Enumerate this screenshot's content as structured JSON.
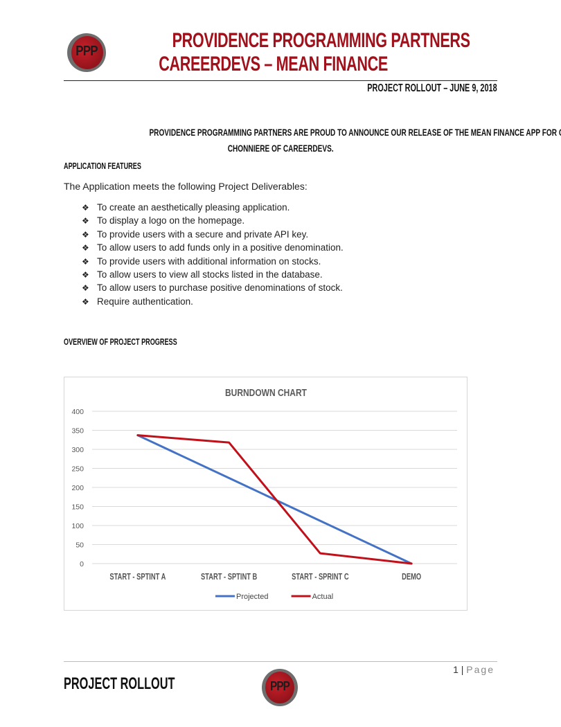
{
  "header": {
    "logo_text": "PPP",
    "title_line1": "PROVIDENCE PROGRAMMING PARTNERS",
    "title_line2": "CAREERDEVS – MEAN FINANCE",
    "meta": "PROJECT ROLLOUT – JUNE 9, 2018"
  },
  "announcement": {
    "line1": "PROVIDENCE PROGRAMMING PARTNERS ARE PROUD TO ANNOUNCE OUR RELEASE OF THE MEAN FINANCE APP FOR CLIFTON",
    "line2": "CHONNIERE OF CAREERDEVS."
  },
  "features": {
    "heading": "APPLICATION FEATURES",
    "intro": "The Application meets the following Project Deliverables:",
    "bullet_glyph": "❖",
    "items": [
      "To create an aesthetically pleasing application.",
      "To display a logo on the homepage.",
      "To provide users with a secure and private API key.",
      "To allow users to add funds only in a positive denomination.",
      "To provide users with additional information on stocks.",
      "To allow users to view all stocks listed in the database.",
      "To allow users to purchase positive denominations of stock.",
      "Require authentication."
    ]
  },
  "progress": {
    "heading": "OVERVIEW OF PROJECT PROGRESS"
  },
  "chart_data": {
    "type": "line",
    "title": "BURNDOWN CHART",
    "categories": [
      "START - SPTINT A",
      "START - SPTINT B",
      "START - SPRINT C",
      "DEMO"
    ],
    "ylim": [
      0,
      400
    ],
    "yticks": [
      0,
      50,
      100,
      150,
      200,
      250,
      300,
      350,
      400
    ],
    "grid": true,
    "legend": "bottom",
    "series": [
      {
        "name": "Projected",
        "color": "#4472c4",
        "values": [
          337,
          224.7,
          112.3,
          0
        ]
      },
      {
        "name": "Actual",
        "color": "#c0111b",
        "values": [
          337,
          318,
          27,
          0
        ]
      }
    ]
  },
  "footer": {
    "page_number": "1",
    "page_separator": "|",
    "page_label": "Page",
    "title": "PROJECT ROLLOUT",
    "logo_text": "PPP"
  }
}
